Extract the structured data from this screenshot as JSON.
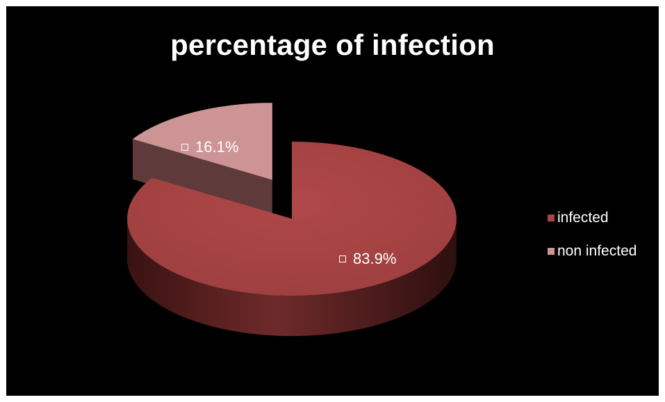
{
  "chart_data": {
    "type": "pie",
    "title": "percentage of infection",
    "categories": [
      "infected",
      "non infected"
    ],
    "values": [
      83.9,
      16.1
    ],
    "value_labels": [
      "83.9%",
      "16.1%"
    ],
    "three_d": true,
    "exploded_slice": "non infected",
    "legend_position": "right",
    "colors": [
      "#a84444",
      "#cc9494"
    ],
    "side_colors": [
      "#5a1f1f",
      "#6e4646"
    ],
    "background": "#000000"
  }
}
